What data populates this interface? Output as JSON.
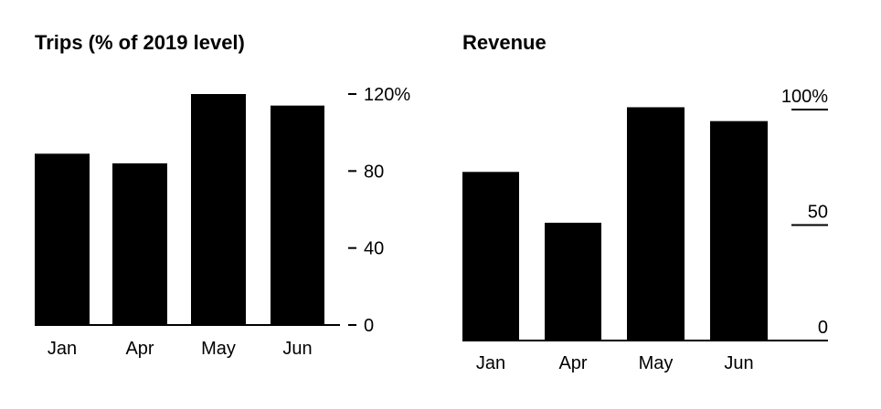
{
  "chart_data": [
    {
      "type": "bar",
      "title": "Trips (% of 2019 level)",
      "categories": [
        "Jan",
        "Apr",
        "May",
        "Jun"
      ],
      "values": [
        89,
        84,
        120,
        114
      ],
      "ylim": [
        0,
        120
      ],
      "yticks": [
        0,
        40,
        80,
        120
      ],
      "ytick_labels": [
        "0",
        "40",
        "80",
        "120%"
      ],
      "y_axis_side": "right",
      "grid": false,
      "bar_color": "#000000"
    },
    {
      "type": "bar",
      "title": "Revenue",
      "categories": [
        "Jan",
        "Apr",
        "May",
        "Jun"
      ],
      "values": [
        73,
        51,
        101,
        95
      ],
      "ylim": [
        0,
        100
      ],
      "yticks": [
        0,
        50,
        100
      ],
      "ytick_labels": [
        "0",
        "50",
        "100%"
      ],
      "y_axis_side": "right",
      "grid": false,
      "bar_color": "#000000"
    }
  ]
}
